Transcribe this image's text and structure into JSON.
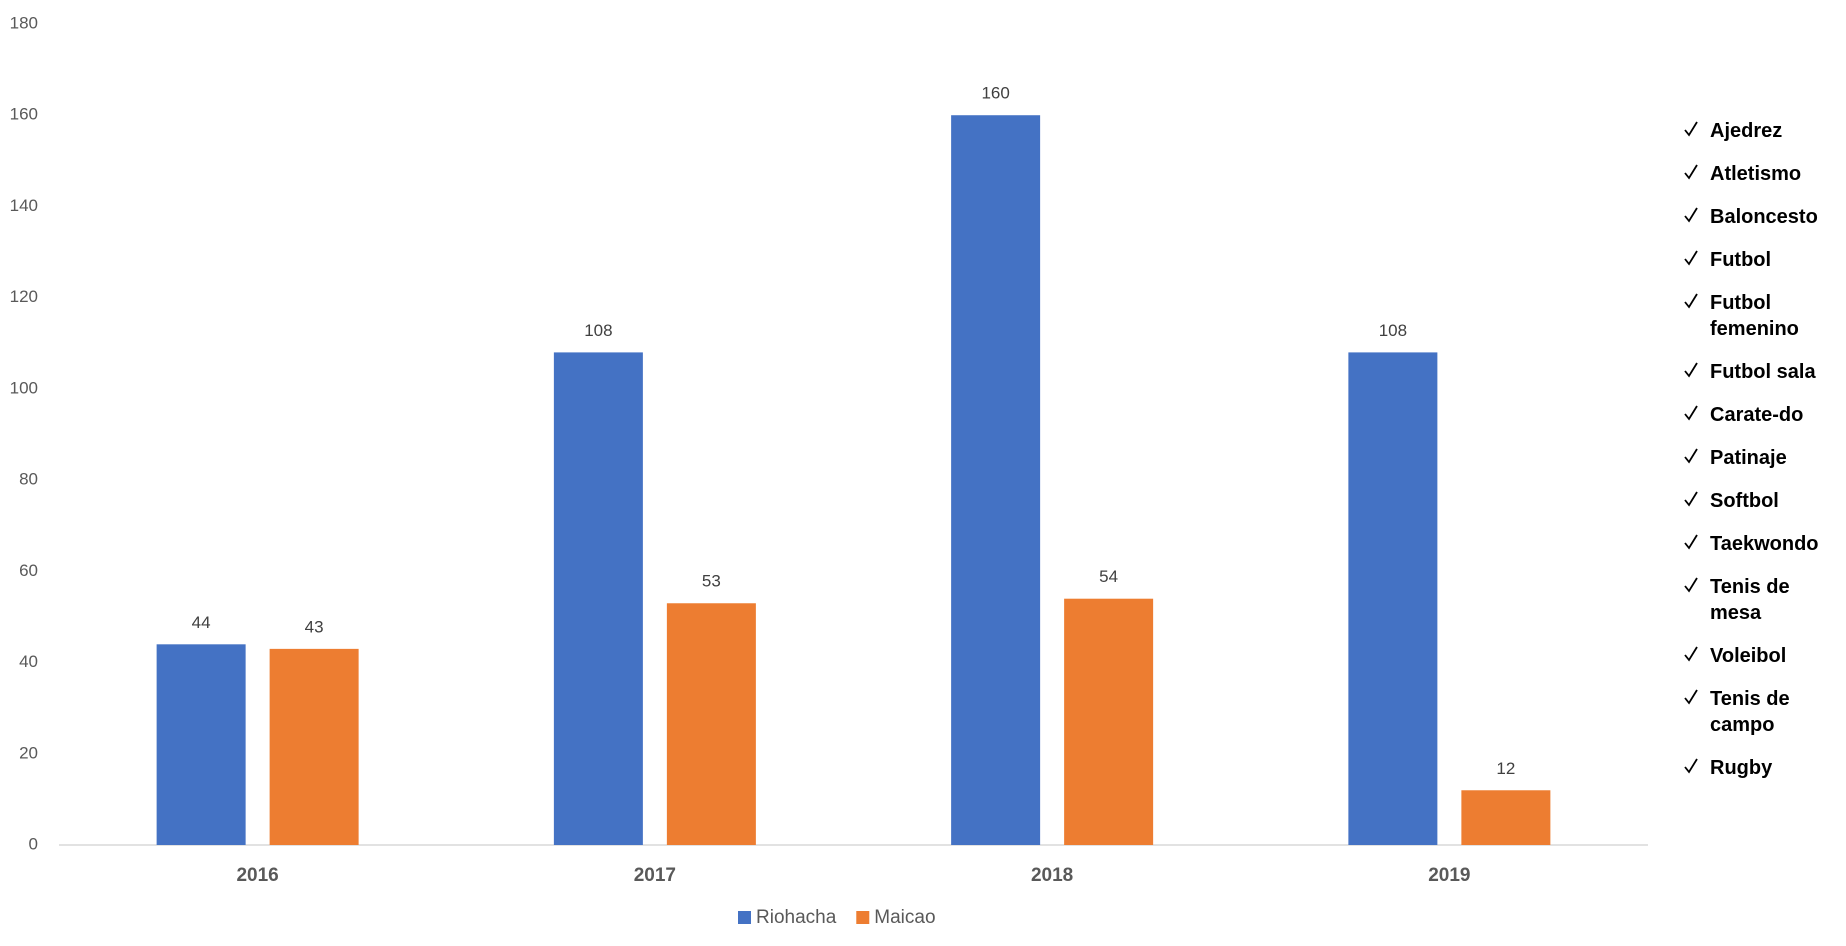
{
  "chart_data": {
    "type": "bar",
    "categories": [
      "2016",
      "2017",
      "2018",
      "2019"
    ],
    "series": [
      {
        "name": "Riohacha",
        "color": "#4472c4",
        "values": [
          44,
          108,
          160,
          108
        ]
      },
      {
        "name": "Maicao",
        "color": "#ed7d31",
        "values": [
          43,
          53,
          54,
          12
        ]
      }
    ],
    "ylim": [
      0,
      180
    ],
    "yticks": [
      0,
      20,
      40,
      60,
      80,
      100,
      120,
      140,
      160,
      180
    ],
    "grid": false,
    "legend": "bottom"
  },
  "sports": [
    "Ajedrez",
    "Atletismo",
    "Baloncesto",
    "Futbol",
    "Futbol femenino",
    "Futbol sala",
    "Carate-do",
    "Patinaje",
    "Softbol",
    "Taekwondo",
    "Tenis de mesa",
    "Voleibol",
    "Tenis de campo",
    "Rugby"
  ]
}
